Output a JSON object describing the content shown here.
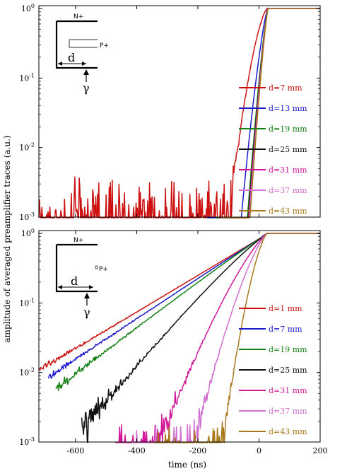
{
  "figure": {
    "ylabel": "amplitude of averaged preamplifier traces (a.u.)",
    "xlabel": "time (ns)"
  },
  "chart_data": [
    {
      "type": "line",
      "panel": "top",
      "xlim": [
        -720,
        200
      ],
      "ylim": [
        0.001,
        1.1
      ],
      "yscale": "log",
      "y_ticks": [
        {
          "base": "10",
          "exp": "0"
        },
        {
          "base": "10",
          "exp": "-1"
        },
        {
          "base": "10",
          "exp": "-2"
        },
        {
          "base": "10",
          "exp": "-3"
        }
      ],
      "legend_position": "right",
      "inset": {
        "top_label": "N+",
        "side_label": "P+",
        "dim_label": "d",
        "gamma_label": "γ"
      },
      "series": [
        {
          "name": "d=7 mm",
          "color": "#cc1111",
          "onset": -320,
          "scale": 38,
          "p": 1.6,
          "noise": 0.003
        },
        {
          "name": "d=13 mm",
          "color": "#1a1acc",
          "onset": -170,
          "scale": 21,
          "p": 1.35,
          "noise": 0
        },
        {
          "name": "d=19 mm",
          "color": "#138013",
          "onset": -140,
          "scale": 15,
          "p": 1.28,
          "noise": 0
        },
        {
          "name": "d=25 mm",
          "color": "#111111",
          "onset": -130,
          "scale": 14,
          "p": 1.26,
          "noise": 0
        },
        {
          "name": "d=31 mm",
          "color": "#d1179a",
          "onset": -128,
          "scale": 13.5,
          "p": 1.25,
          "noise": 0
        },
        {
          "name": "d=37 mm",
          "color": "#d070d0",
          "onset": -126,
          "scale": 13,
          "p": 1.25,
          "noise": 0
        },
        {
          "name": "d=43 mm",
          "color": "#a8781a",
          "onset": -124,
          "scale": 12.5,
          "p": 1.24,
          "noise": 0
        }
      ]
    },
    {
      "type": "line",
      "panel": "bottom",
      "xlim": [
        -720,
        200
      ],
      "ylim": [
        0.001,
        1.1
      ],
      "yscale": "log",
      "x_ticks": [
        "-600",
        "-400",
        "-200",
        "0",
        "200"
      ],
      "x_tick_values": [
        -600,
        -400,
        -200,
        0,
        200
      ],
      "y_ticks": [
        {
          "base": "10",
          "exp": "0"
        },
        {
          "base": "10",
          "exp": "-1"
        },
        {
          "base": "10",
          "exp": "-2"
        },
        {
          "base": "10",
          "exp": "-3"
        }
      ],
      "legend_position": "right",
      "inset": {
        "top_label": "N+",
        "side_label": "P+",
        "dim_label": "d",
        "gamma_label": "γ"
      },
      "series": [
        {
          "name": "d=1 mm",
          "color": "#cc1111",
          "onset": -720,
          "scale": 165,
          "p": 1.0,
          "noise": 0.0015
        },
        {
          "name": "d=7 mm",
          "color": "#1a1acc",
          "onset": -690,
          "scale": 155,
          "p": 1.02,
          "noise": 0.0015
        },
        {
          "name": "d=19 mm",
          "color": "#138013",
          "onset": -665,
          "scale": 145,
          "p": 1.05,
          "noise": 0.0015
        },
        {
          "name": "d=25 mm",
          "color": "#111111",
          "onset": -580,
          "scale": 118,
          "p": 1.15,
          "noise": 0.0015
        },
        {
          "name": "d=31 mm",
          "color": "#d1179a",
          "onset": -470,
          "scale": 80,
          "p": 1.3,
          "noise": 0.0015
        },
        {
          "name": "d=37 mm",
          "color": "#d070d0",
          "onset": -410,
          "scale": 60,
          "p": 1.4,
          "noise": 0.0015
        },
        {
          "name": "d=43 mm",
          "color": "#a8781a",
          "onset": -345,
          "scale": 42,
          "p": 1.55,
          "noise": 0.0015
        }
      ]
    }
  ]
}
